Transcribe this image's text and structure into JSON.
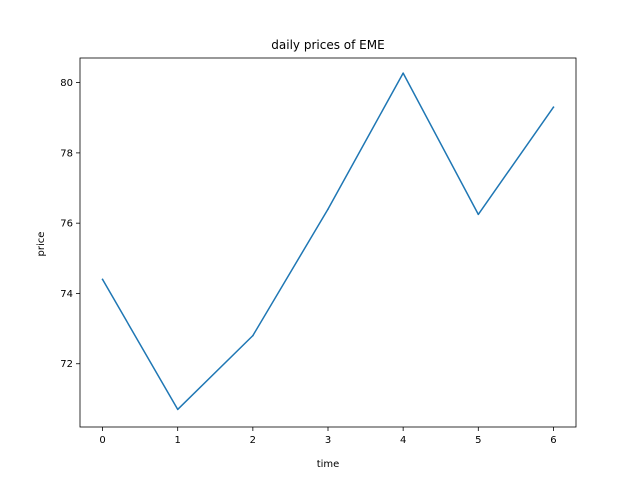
{
  "chart_data": {
    "type": "line",
    "title": "daily prices of EME",
    "xlabel": "time",
    "ylabel": "price",
    "x": [
      0,
      1,
      2,
      3,
      4,
      5,
      6
    ],
    "x_ticks": [
      "0",
      "1",
      "2",
      "3",
      "4",
      "5",
      "6"
    ],
    "y_ticks": [
      "72",
      "74",
      "76",
      "78",
      "80"
    ],
    "xlim": [
      -0.3,
      6.3
    ],
    "ylim": [
      70.2,
      80.7
    ],
    "grid": false,
    "series": [
      {
        "color": "#1f77b4",
        "values": [
          74.4,
          70.7,
          72.8,
          76.4,
          80.27,
          76.25,
          79.3
        ]
      }
    ]
  }
}
